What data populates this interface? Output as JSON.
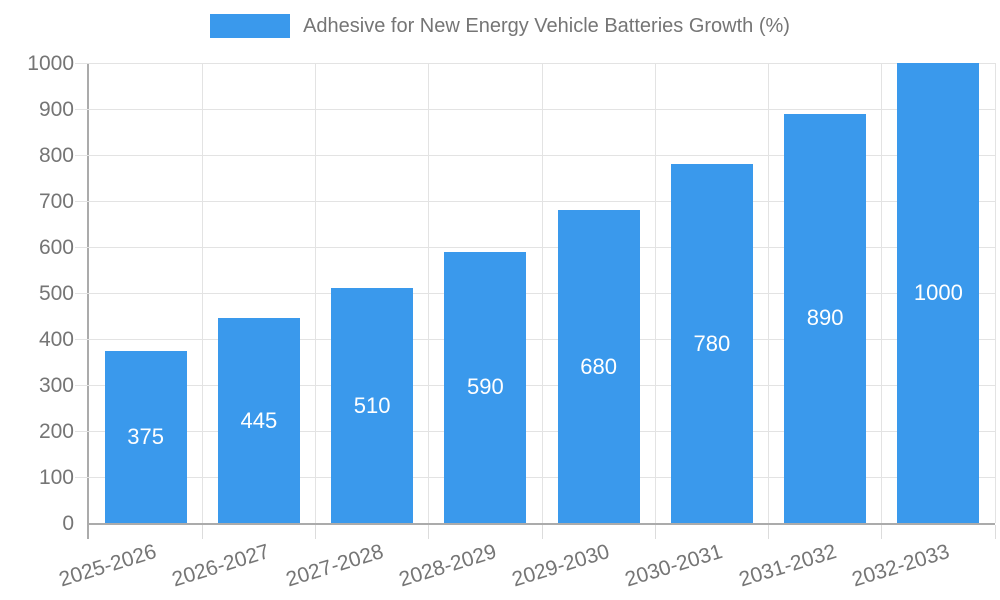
{
  "legend": {
    "series_label": "Adhesive for New Energy Vehicle Batteries Growth (%)"
  },
  "colors": {
    "bar": "#3A99EC",
    "axis_line": "#ababab",
    "grid_line": "#e3e3e3",
    "tick_text": "#757575",
    "value_label_text": "#ffffff",
    "background": "#ffffff"
  },
  "chart_data": {
    "type": "bar",
    "title": "Adhesive for New Energy Vehicle Batteries Growth (%)",
    "categories": [
      "2025-2026",
      "2026-2027",
      "2027-2028",
      "2028-2029",
      "2029-2030",
      "2030-2031",
      "2031-2032",
      "2032-2033"
    ],
    "series": [
      {
        "name": "Adhesive for New Energy Vehicle Batteries Growth (%)",
        "values": [
          375,
          445,
          510,
          590,
          680,
          780,
          890,
          1000
        ]
      }
    ],
    "value_labels": [
      375,
      445,
      510,
      590,
      680,
      780,
      890,
      1000
    ],
    "value_label_position": "inside-center",
    "xlabel": "",
    "ylabel": "",
    "ylim": [
      0,
      1000
    ],
    "yticks": [
      0,
      100,
      200,
      300,
      400,
      500,
      600,
      700,
      800,
      900,
      1000
    ],
    "grid": true,
    "x_label_rotation_deg": -17,
    "legend_position": "top",
    "bar_color": "#3A99EC"
  }
}
